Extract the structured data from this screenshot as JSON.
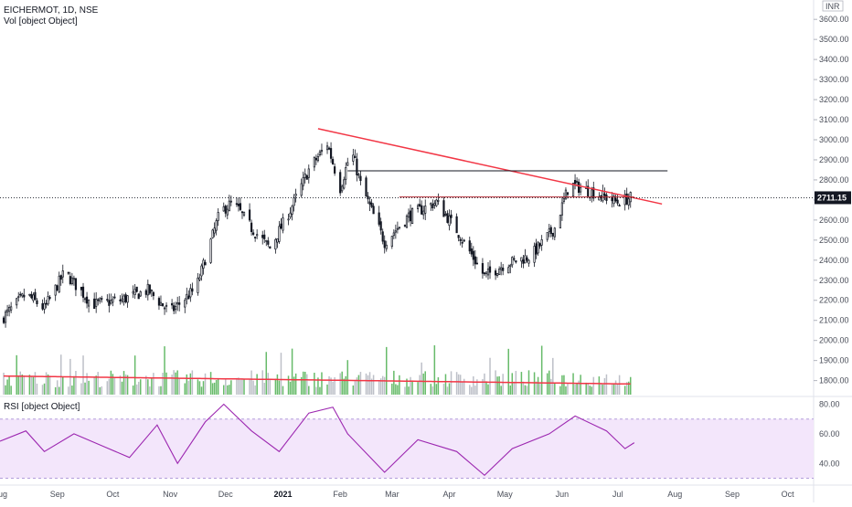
{
  "header": {
    "symbol_line": "EICHERMOT, 1D, NSE",
    "volume_label": "Vol [object Object]",
    "currency": "INR",
    "rsi_label": "RSI [object Object]"
  },
  "chart_data": [
    {
      "type": "candlestick",
      "title": "EICHERMOT, 1D, NSE",
      "ylim": [
        1730,
        3660
      ],
      "y_ticks": [
        "3600.00",
        "3500.00",
        "3400.00",
        "3300.00",
        "3200.00",
        "3100.00",
        "3000.00",
        "2900.00",
        "2800.00",
        "2700.00",
        "2600.00",
        "2500.00",
        "2400.00",
        "2300.00",
        "2200.00",
        "2100.00",
        "2000.00",
        "1900.00",
        "1800.00"
      ],
      "x_ticks": [
        "Aug",
        "Sep",
        "Oct",
        "Nov",
        "Dec",
        "2021",
        "Feb",
        "Mar",
        "Apr",
        "May",
        "Jun",
        "Jul",
        "Aug",
        "Sep",
        "Oct"
      ],
      "x_range": [
        "2020-08-01",
        "2021-10-15"
      ],
      "last_price": "2711.15",
      "grid": false,
      "closes": [
        {
          "date": "2020-08-01",
          "close": 2100
        },
        {
          "date": "2020-08-15",
          "close": 2230
        },
        {
          "date": "2020-08-25",
          "close": 2160
        },
        {
          "date": "2020-09-05",
          "close": 2340
        },
        {
          "date": "2020-09-20",
          "close": 2180
        },
        {
          "date": "2020-10-05",
          "close": 2200
        },
        {
          "date": "2020-10-20",
          "close": 2250
        },
        {
          "date": "2020-11-01",
          "close": 2140
        },
        {
          "date": "2020-11-15",
          "close": 2260
        },
        {
          "date": "2020-11-28",
          "close": 2640
        },
        {
          "date": "2020-12-05",
          "close": 2690
        },
        {
          "date": "2020-12-15",
          "close": 2560
        },
        {
          "date": "2020-12-25",
          "close": 2460
        },
        {
          "date": "2021-01-05",
          "close": 2650
        },
        {
          "date": "2021-01-15",
          "close": 2850
        },
        {
          "date": "2021-01-25",
          "close": 2980
        },
        {
          "date": "2021-02-01",
          "close": 2760
        },
        {
          "date": "2021-02-07",
          "close": 2950
        },
        {
          "date": "2021-02-12",
          "close": 2780
        },
        {
          "date": "2021-02-25",
          "close": 2490
        },
        {
          "date": "2021-03-10",
          "close": 2620
        },
        {
          "date": "2021-03-25",
          "close": 2690
        },
        {
          "date": "2021-04-05",
          "close": 2550
        },
        {
          "date": "2021-04-20",
          "close": 2320
        },
        {
          "date": "2021-05-01",
          "close": 2380
        },
        {
          "date": "2021-05-15",
          "close": 2420
        },
        {
          "date": "2021-05-28",
          "close": 2560
        },
        {
          "date": "2021-06-05",
          "close": 2780
        },
        {
          "date": "2021-06-20",
          "close": 2730
        },
        {
          "date": "2021-07-01",
          "close": 2690
        },
        {
          "date": "2021-07-08",
          "close": 2711
        }
      ],
      "trendlines": [
        {
          "color": "#f23645",
          "from": {
            "date": "2021-01-20",
            "price": 3055
          },
          "to": {
            "date": "2021-07-25",
            "price": 2680
          }
        },
        {
          "color": "#131722",
          "from": {
            "date": "2021-02-05",
            "price": 2845
          },
          "to": {
            "date": "2021-07-28",
            "price": 2845
          }
        },
        {
          "color": "#b22833",
          "from": {
            "date": "2021-03-05",
            "price": 2715
          },
          "to": {
            "date": "2021-07-10",
            "price": 2715
          }
        }
      ]
    },
    {
      "type": "bar",
      "name": "Volume",
      "colors": {
        "up": "#26a69a",
        "down": "#b2b5be",
        "green": "#4caf50",
        "ma": "#f23645"
      }
    },
    {
      "type": "line",
      "name": "RSI",
      "y_ticks": [
        "80.00",
        "60.00",
        "40.00"
      ],
      "ylim": [
        26,
        84
      ],
      "band": [
        30,
        70
      ],
      "values": [
        {
          "date": "2020-08-01",
          "value": 55
        },
        {
          "date": "2020-08-15",
          "value": 62
        },
        {
          "date": "2020-08-25",
          "value": 48
        },
        {
          "date": "2020-09-10",
          "value": 60
        },
        {
          "date": "2020-09-25",
          "value": 52
        },
        {
          "date": "2020-10-10",
          "value": 44
        },
        {
          "date": "2020-10-25",
          "value": 66
        },
        {
          "date": "2020-11-05",
          "value": 40
        },
        {
          "date": "2020-11-20",
          "value": 68
        },
        {
          "date": "2020-11-30",
          "value": 80
        },
        {
          "date": "2020-12-15",
          "value": 62
        },
        {
          "date": "2020-12-30",
          "value": 48
        },
        {
          "date": "2021-01-15",
          "value": 74
        },
        {
          "date": "2021-01-28",
          "value": 78
        },
        {
          "date": "2021-02-05",
          "value": 60
        },
        {
          "date": "2021-02-25",
          "value": 34
        },
        {
          "date": "2021-03-15",
          "value": 56
        },
        {
          "date": "2021-04-05",
          "value": 48
        },
        {
          "date": "2021-04-20",
          "value": 32
        },
        {
          "date": "2021-05-05",
          "value": 50
        },
        {
          "date": "2021-05-25",
          "value": 60
        },
        {
          "date": "2021-06-08",
          "value": 72
        },
        {
          "date": "2021-06-25",
          "value": 62
        },
        {
          "date": "2021-07-05",
          "value": 50
        },
        {
          "date": "2021-07-10",
          "value": 54
        }
      ]
    }
  ]
}
